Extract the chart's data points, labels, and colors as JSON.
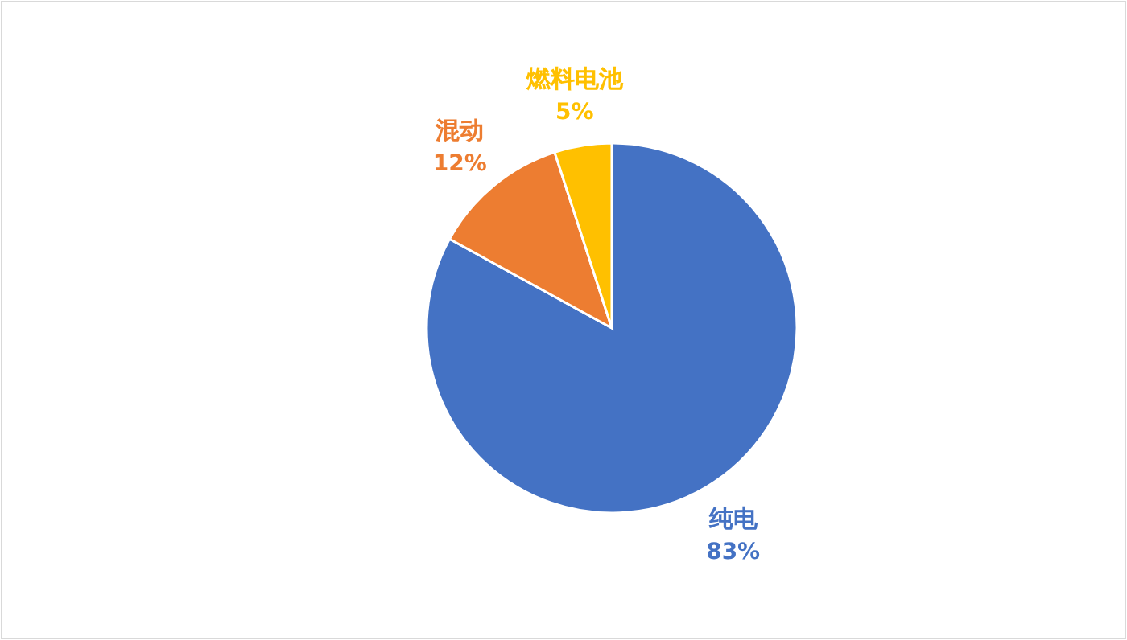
{
  "chart_data": {
    "type": "pie",
    "categories": [
      "纯电",
      "混动",
      "燃料电池"
    ],
    "values": [
      83,
      12,
      5
    ],
    "colors": [
      "#4472c4",
      "#ed7d31",
      "#ffc000"
    ],
    "value_labels": [
      "83%",
      "12%",
      "5%"
    ]
  }
}
